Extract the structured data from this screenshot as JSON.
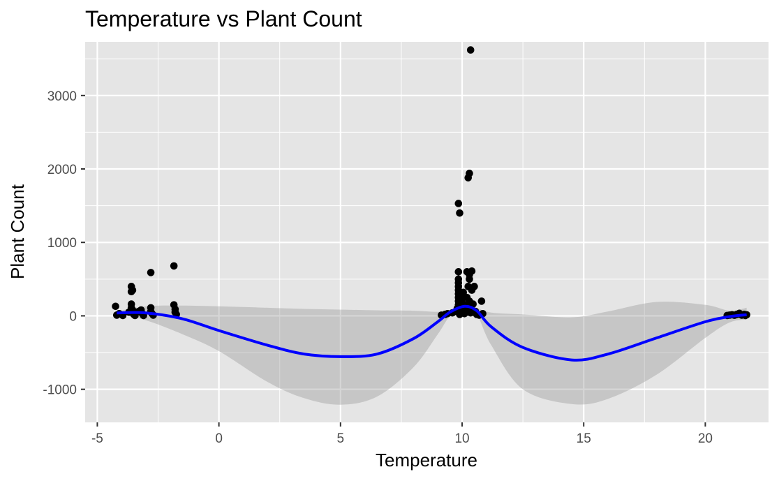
{
  "chart_data": {
    "type": "scatter",
    "title": "Temperature vs Plant Count",
    "xlabel": "Temperature",
    "ylabel": "Plant Count",
    "xlim": [
      -5.5,
      22.6
    ],
    "ylim": [
      -1450,
      3730
    ],
    "x_ticks": [
      -5,
      0,
      5,
      10,
      15,
      20
    ],
    "x_tick_labels": [
      "-5",
      "0",
      "5",
      "10",
      "15",
      "20"
    ],
    "y_ticks": [
      -1000,
      0,
      1000,
      2000,
      3000
    ],
    "y_tick_labels": [
      "-1000",
      "0",
      "1000",
      "2000",
      "3000"
    ],
    "x_minor": [
      -2.5,
      2.5,
      7.5,
      12.5,
      17.5
    ],
    "y_minor": [
      -500,
      500,
      1500,
      2500,
      3500
    ],
    "grid": true,
    "colors": {
      "panel": "#e5e5e5",
      "grid": "#ffffff",
      "points": "#000000",
      "smooth_line": "#0000ff",
      "ribbon": "#999999"
    },
    "points": [
      {
        "x": -4.25,
        "y": 130
      },
      {
        "x": -4.2,
        "y": 10
      },
      {
        "x": -4.1,
        "y": 30
      },
      {
        "x": -3.95,
        "y": 5
      },
      {
        "x": -3.7,
        "y": 50
      },
      {
        "x": -3.6,
        "y": 400
      },
      {
        "x": -3.6,
        "y": 330
      },
      {
        "x": -3.55,
        "y": 350
      },
      {
        "x": -3.6,
        "y": 160
      },
      {
        "x": -3.6,
        "y": 110
      },
      {
        "x": -3.55,
        "y": 80
      },
      {
        "x": -3.55,
        "y": 40
      },
      {
        "x": -3.5,
        "y": 20
      },
      {
        "x": -3.45,
        "y": 5
      },
      {
        "x": -3.3,
        "y": 60
      },
      {
        "x": -3.2,
        "y": 80
      },
      {
        "x": -3.15,
        "y": 30
      },
      {
        "x": -3.1,
        "y": 5
      },
      {
        "x": -2.8,
        "y": 590
      },
      {
        "x": -2.8,
        "y": 110
      },
      {
        "x": -2.8,
        "y": 60
      },
      {
        "x": -2.75,
        "y": 30
      },
      {
        "x": -2.7,
        "y": 10
      },
      {
        "x": -1.85,
        "y": 680
      },
      {
        "x": -1.85,
        "y": 150
      },
      {
        "x": -1.8,
        "y": 90
      },
      {
        "x": -1.8,
        "y": 50
      },
      {
        "x": -1.75,
        "y": 20
      },
      {
        "x": 9.15,
        "y": 10
      },
      {
        "x": 9.3,
        "y": 20
      },
      {
        "x": 9.4,
        "y": 30
      },
      {
        "x": 9.6,
        "y": 40
      },
      {
        "x": 9.75,
        "y": 60
      },
      {
        "x": 9.8,
        "y": 100
      },
      {
        "x": 9.85,
        "y": 150
      },
      {
        "x": 9.85,
        "y": 200
      },
      {
        "x": 9.85,
        "y": 250
      },
      {
        "x": 9.85,
        "y": 300
      },
      {
        "x": 9.85,
        "y": 350
      },
      {
        "x": 9.85,
        "y": 400
      },
      {
        "x": 9.85,
        "y": 450
      },
      {
        "x": 9.85,
        "y": 500
      },
      {
        "x": 9.85,
        "y": 600
      },
      {
        "x": 9.85,
        "y": 1530
      },
      {
        "x": 9.9,
        "y": 1400
      },
      {
        "x": 9.9,
        "y": 20
      },
      {
        "x": 10.0,
        "y": 50
      },
      {
        "x": 10.0,
        "y": 100
      },
      {
        "x": 10.0,
        "y": 180
      },
      {
        "x": 10.0,
        "y": 260
      },
      {
        "x": 10.05,
        "y": 320
      },
      {
        "x": 10.1,
        "y": 30
      },
      {
        "x": 10.15,
        "y": 150
      },
      {
        "x": 10.2,
        "y": 600
      },
      {
        "x": 10.2,
        "y": 250
      },
      {
        "x": 10.2,
        "y": 80
      },
      {
        "x": 10.25,
        "y": 400
      },
      {
        "x": 10.25,
        "y": 1880
      },
      {
        "x": 10.3,
        "y": 1940
      },
      {
        "x": 10.3,
        "y": 560
      },
      {
        "x": 10.3,
        "y": 500
      },
      {
        "x": 10.3,
        "y": 200
      },
      {
        "x": 10.3,
        "y": 120
      },
      {
        "x": 10.35,
        "y": 3620
      },
      {
        "x": 10.35,
        "y": 40
      },
      {
        "x": 10.4,
        "y": 610
      },
      {
        "x": 10.4,
        "y": 350
      },
      {
        "x": 10.45,
        "y": 160
      },
      {
        "x": 10.5,
        "y": 400
      },
      {
        "x": 10.55,
        "y": 60
      },
      {
        "x": 10.6,
        "y": 20
      },
      {
        "x": 10.7,
        "y": 10
      },
      {
        "x": 10.8,
        "y": 200
      },
      {
        "x": 10.85,
        "y": 30
      },
      {
        "x": 20.9,
        "y": 5
      },
      {
        "x": 21.0,
        "y": 10
      },
      {
        "x": 21.1,
        "y": 15
      },
      {
        "x": 21.2,
        "y": 8
      },
      {
        "x": 21.3,
        "y": 20
      },
      {
        "x": 21.4,
        "y": 35
      },
      {
        "x": 21.5,
        "y": 10
      },
      {
        "x": 21.6,
        "y": 20
      },
      {
        "x": 21.65,
        "y": 5
      },
      {
        "x": 21.7,
        "y": 15
      }
    ],
    "smooth": {
      "x": [
        -4.2,
        -3.0,
        -1.5,
        0,
        2,
        3.5,
        5,
        6.5,
        8,
        9,
        9.5,
        10.1,
        10.6,
        11.2,
        12.5,
        14.5,
        16,
        18,
        20,
        21.0,
        21.7
      ],
      "y": [
        40,
        40,
        -40,
        -200,
        -400,
        -520,
        -555,
        -520,
        -310,
        -80,
        50,
        130,
        70,
        -150,
        -430,
        -600,
        -520,
        -300,
        -80,
        -10,
        15
      ],
      "lower": [
        30,
        -60,
        -250,
        -480,
        -900,
        -1120,
        -1210,
        -1100,
        -700,
        -250,
        -10,
        70,
        20,
        -400,
        -1000,
        -1200,
        -1130,
        -800,
        -300,
        -90,
        -50
      ],
      "upper": [
        60,
        130,
        140,
        130,
        110,
        95,
        85,
        75,
        70,
        55,
        80,
        170,
        110,
        45,
        20,
        -20,
        60,
        190,
        150,
        70,
        110
      ]
    }
  }
}
